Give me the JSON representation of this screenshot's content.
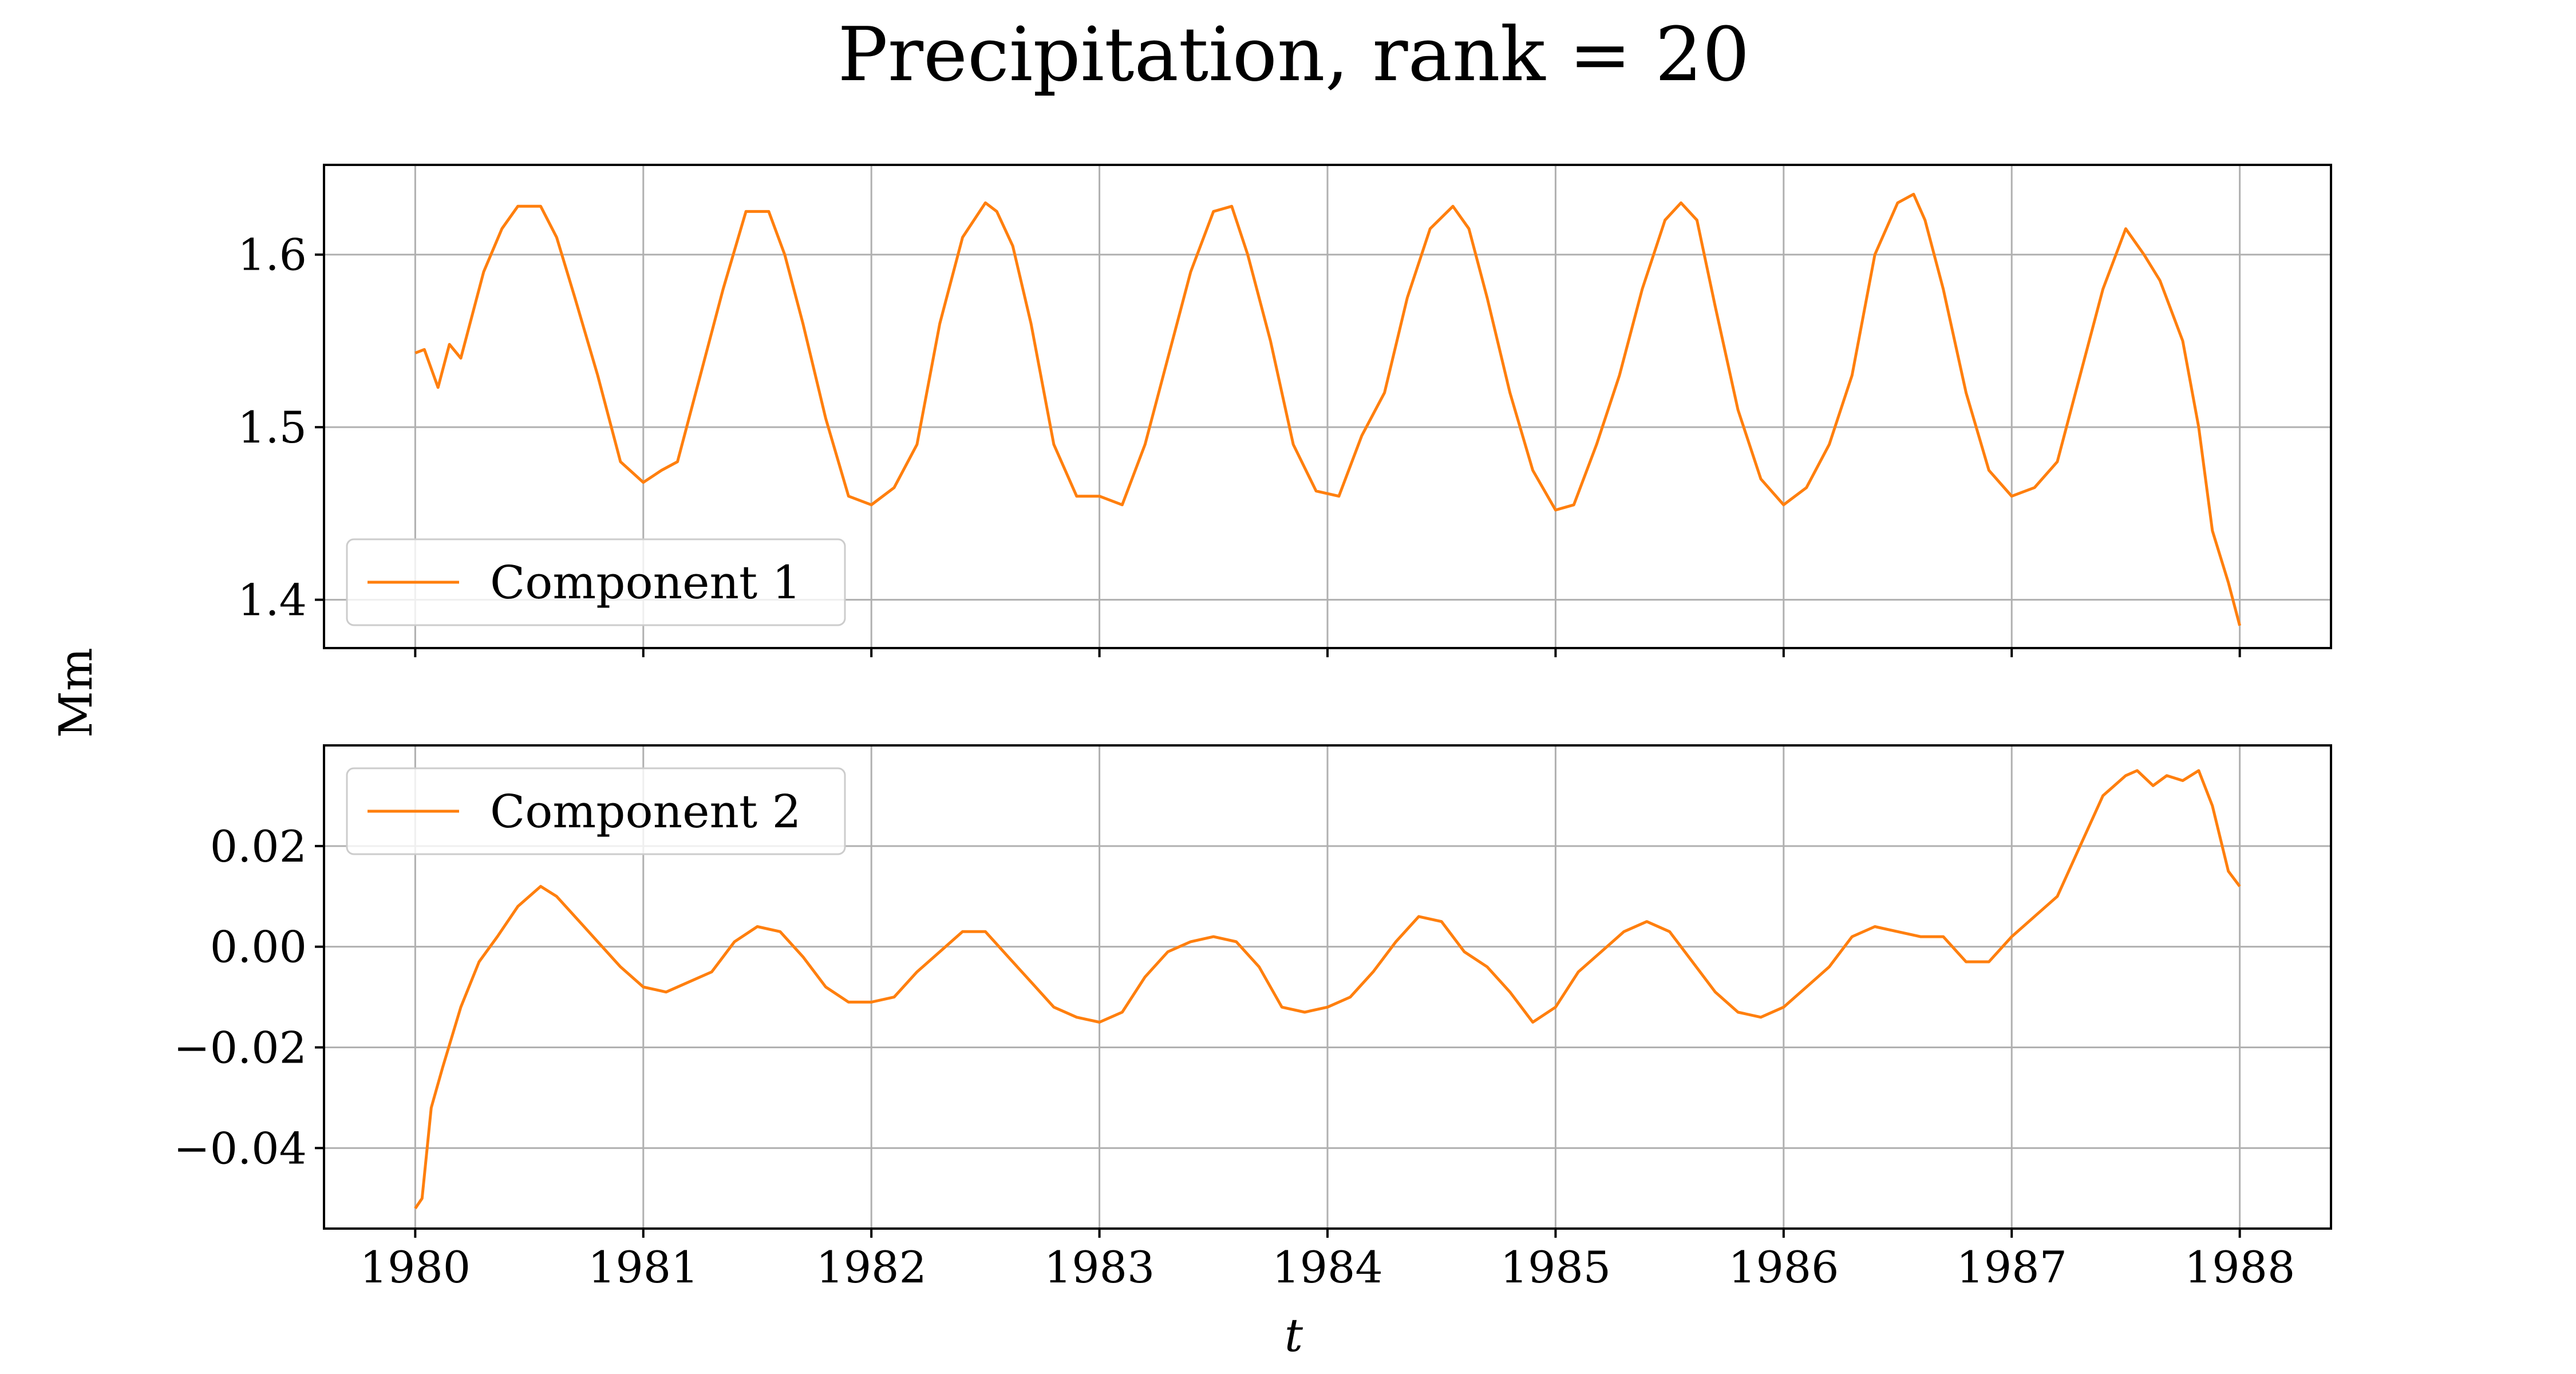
{
  "chart_data": [
    {
      "type": "line",
      "title": "Precipitation, rank = 20",
      "xlabel": "t",
      "ylabel": "Mm",
      "xlim": [
        1979.6,
        1988.4
      ],
      "ylim": [
        1.372,
        1.652
      ],
      "xticks": [
        "1980",
        "1981",
        "1982",
        "1983",
        "1984",
        "1985",
        "1986",
        "1987",
        "1988"
      ],
      "yticks": [
        1.4,
        1.5,
        1.6
      ],
      "ytick_labels": [
        "1.4",
        "1.5",
        "1.6"
      ],
      "grid": true,
      "legend_position": "lower-left",
      "series": [
        {
          "name": "Component 1",
          "color": "#ff7f0e",
          "x": [
            1980.0,
            1980.04,
            1980.1,
            1980.15,
            1980.2,
            1980.3,
            1980.38,
            1980.45,
            1980.55,
            1980.62,
            1980.7,
            1980.8,
            1980.9,
            1981.0,
            1981.08,
            1981.15,
            1981.25,
            1981.35,
            1981.45,
            1981.55,
            1981.62,
            1981.7,
            1981.8,
            1981.9,
            1982.0,
            1982.1,
            1982.2,
            1982.3,
            1982.4,
            1982.5,
            1982.55,
            1982.62,
            1982.7,
            1982.8,
            1982.9,
            1983.0,
            1983.1,
            1983.2,
            1983.3,
            1983.4,
            1983.5,
            1983.58,
            1983.65,
            1983.75,
            1983.85,
            1983.95,
            1984.05,
            1984.15,
            1984.25,
            1984.35,
            1984.45,
            1984.55,
            1984.62,
            1984.7,
            1984.8,
            1984.9,
            1985.0,
            1985.08,
            1985.18,
            1985.28,
            1985.38,
            1985.48,
            1985.55,
            1985.62,
            1985.7,
            1985.8,
            1985.9,
            1986.0,
            1986.1,
            1986.2,
            1986.3,
            1986.4,
            1986.5,
            1986.57,
            1986.62,
            1986.7,
            1986.8,
            1986.9,
            1987.0,
            1987.1,
            1987.2,
            1987.3,
            1987.4,
            1987.5,
            1987.58,
            1987.65,
            1987.75,
            1987.82,
            1987.88,
            1987.95,
            1988.0
          ],
          "values": [
            1.543,
            1.545,
            1.523,
            1.548,
            1.54,
            1.59,
            1.615,
            1.628,
            1.628,
            1.61,
            1.575,
            1.53,
            1.48,
            1.468,
            1.475,
            1.48,
            1.53,
            1.58,
            1.625,
            1.625,
            1.6,
            1.56,
            1.505,
            1.46,
            1.455,
            1.465,
            1.49,
            1.56,
            1.61,
            1.63,
            1.625,
            1.605,
            1.56,
            1.49,
            1.46,
            1.46,
            1.455,
            1.49,
            1.54,
            1.59,
            1.625,
            1.628,
            1.6,
            1.55,
            1.49,
            1.463,
            1.46,
            1.495,
            1.52,
            1.575,
            1.615,
            1.628,
            1.615,
            1.575,
            1.52,
            1.475,
            1.452,
            1.455,
            1.49,
            1.53,
            1.58,
            1.62,
            1.63,
            1.62,
            1.57,
            1.51,
            1.47,
            1.455,
            1.465,
            1.49,
            1.53,
            1.6,
            1.63,
            1.635,
            1.62,
            1.58,
            1.52,
            1.475,
            1.46,
            1.465,
            1.48,
            1.53,
            1.58,
            1.615,
            1.6,
            1.585,
            1.55,
            1.5,
            1.44,
            1.41,
            1.385
          ]
        }
      ]
    },
    {
      "type": "line",
      "xlim": [
        1979.6,
        1988.4
      ],
      "ylim": [
        -0.056,
        0.04
      ],
      "xticks": [
        "1980",
        "1981",
        "1982",
        "1983",
        "1984",
        "1985",
        "1986",
        "1987",
        "1988"
      ],
      "yticks": [
        -0.04,
        -0.02,
        0.0,
        0.02
      ],
      "ytick_labels": [
        "−0.04",
        "−0.02",
        "0.00",
        "0.02"
      ],
      "grid": true,
      "legend_position": "upper-left",
      "series": [
        {
          "name": "Component 2",
          "color": "#ff7f0e",
          "x": [
            1980.0,
            1980.03,
            1980.07,
            1980.12,
            1980.2,
            1980.28,
            1980.36,
            1980.45,
            1980.55,
            1980.62,
            1980.7,
            1980.8,
            1980.9,
            1981.0,
            1981.1,
            1981.2,
            1981.3,
            1981.4,
            1981.5,
            1981.6,
            1981.7,
            1981.8,
            1981.9,
            1982.0,
            1982.1,
            1982.2,
            1982.3,
            1982.4,
            1982.5,
            1982.6,
            1982.7,
            1982.8,
            1982.9,
            1983.0,
            1983.1,
            1983.2,
            1983.3,
            1983.4,
            1983.5,
            1983.6,
            1983.7,
            1983.8,
            1983.9,
            1984.0,
            1984.1,
            1984.2,
            1984.3,
            1984.4,
            1984.5,
            1984.6,
            1984.7,
            1984.8,
            1984.9,
            1985.0,
            1985.1,
            1985.2,
            1985.3,
            1985.4,
            1985.5,
            1985.6,
            1985.7,
            1985.8,
            1985.9,
            1986.0,
            1986.1,
            1986.2,
            1986.3,
            1986.4,
            1986.5,
            1986.6,
            1986.7,
            1986.8,
            1986.9,
            1987.0,
            1987.1,
            1987.2,
            1987.3,
            1987.4,
            1987.5,
            1987.55,
            1987.62,
            1987.68,
            1987.75,
            1987.82,
            1987.88,
            1987.95,
            1988.0
          ],
          "values": [
            -0.052,
            -0.05,
            -0.032,
            -0.024,
            -0.012,
            -0.003,
            0.002,
            0.008,
            0.012,
            0.01,
            0.006,
            0.001,
            -0.004,
            -0.008,
            -0.009,
            -0.007,
            -0.005,
            0.001,
            0.004,
            0.003,
            -0.002,
            -0.008,
            -0.011,
            -0.011,
            -0.01,
            -0.005,
            -0.001,
            0.003,
            0.003,
            -0.002,
            -0.007,
            -0.012,
            -0.014,
            -0.015,
            -0.013,
            -0.006,
            -0.001,
            0.001,
            0.002,
            0.001,
            -0.004,
            -0.012,
            -0.013,
            -0.012,
            -0.01,
            -0.005,
            0.001,
            0.006,
            0.005,
            -0.001,
            -0.004,
            -0.009,
            -0.015,
            -0.012,
            -0.005,
            -0.001,
            0.003,
            0.005,
            0.003,
            -0.003,
            -0.009,
            -0.013,
            -0.014,
            -0.012,
            -0.008,
            -0.004,
            0.002,
            0.004,
            0.003,
            0.002,
            0.002,
            -0.003,
            -0.003,
            0.002,
            0.006,
            0.01,
            0.02,
            0.03,
            0.034,
            0.035,
            0.032,
            0.034,
            0.033,
            0.035,
            0.028,
            0.015,
            0.012
          ]
        }
      ]
    }
  ]
}
